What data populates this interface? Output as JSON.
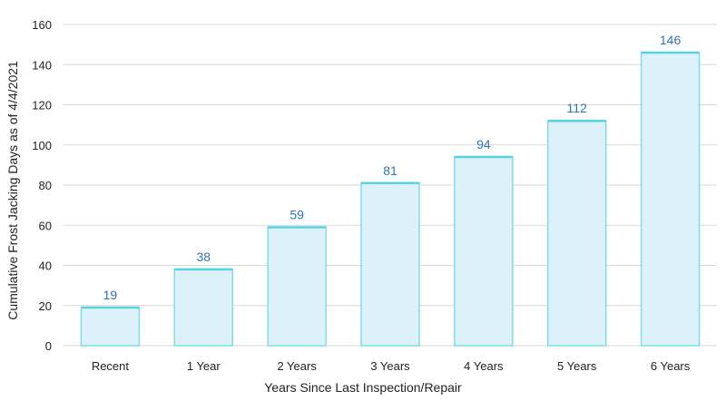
{
  "chart_data": {
    "type": "bar",
    "categories": [
      "Recent",
      "1 Year",
      "2 Years",
      "3 Years",
      "4 Years",
      "5 Years",
      "6 Years"
    ],
    "values": [
      19,
      38,
      59,
      81,
      94,
      112,
      146
    ],
    "xlabel": "Years Since Last Inspection/Repair",
    "ylabel": "Cumulative Frost Jacking Days as of  4/4/2021",
    "ylim": [
      0,
      160
    ],
    "yticks": [
      0,
      20,
      40,
      60,
      80,
      100,
      120,
      140,
      160
    ],
    "grid": true,
    "legend": "none",
    "colors": {
      "bar_fill": "#ddf1fb",
      "bar_stroke": "#7fdde6",
      "bar_top": "#58d3e0",
      "data_label": "#2e75b6",
      "grid": "#d9d9d9"
    }
  }
}
